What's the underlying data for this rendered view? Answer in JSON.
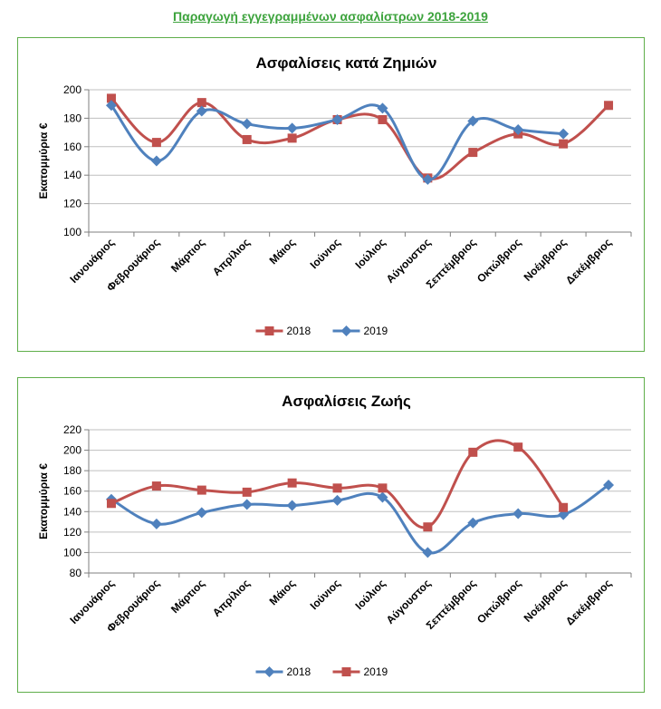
{
  "page_title": "Παραγωγή εγγεγραμμένων ασφαλίστρων 2018-2019",
  "colors": {
    "series_red": "#c0504d",
    "series_blue": "#4f81bd",
    "title_green": "#3ca33c",
    "border_green": "#5fae4a",
    "grid": "#bfbfbf"
  },
  "chart_data": [
    {
      "type": "line",
      "title": "Ασφαλίσεις κατά Ζημιών",
      "ylabel": "Εκατομμύρια  €",
      "xlabel": "",
      "ylim": [
        100,
        200
      ],
      "yticks": [
        100,
        120,
        140,
        160,
        180,
        200
      ],
      "grid": true,
      "legend_position": "bottom",
      "categories": [
        "Ιανουάριος",
        "Φεβρουάριος",
        "Μάρτιος",
        "Απρίλιος",
        "Μάιος",
        "Ιούνιος",
        "Ιούλιος",
        "Αύγουστος",
        "Σεπτέμβριος",
        "Οκτώβριος",
        "Νοέμβριος",
        "Δεκέμβριος"
      ],
      "series": [
        {
          "name": "2018",
          "color": "#c0504d",
          "marker": "square",
          "values": [
            194,
            163,
            191,
            165,
            166,
            179,
            179,
            138,
            156,
            169,
            162,
            189
          ]
        },
        {
          "name": "2019",
          "color": "#4f81bd",
          "marker": "diamond",
          "values": [
            189,
            150,
            185,
            176,
            173,
            179,
            187,
            137,
            178,
            172,
            169,
            null
          ]
        }
      ]
    },
    {
      "type": "line",
      "title": "Ασφαλίσεις Ζωής",
      "ylabel": "Εκατομμύρια  €",
      "xlabel": "",
      "ylim": [
        80,
        220
      ],
      "yticks": [
        80,
        100,
        120,
        140,
        160,
        180,
        200,
        220
      ],
      "grid": true,
      "legend_position": "bottom",
      "categories": [
        "Ιανουάριος",
        "Φεβρουάριος",
        "Μάρτιος",
        "Απρίλιος",
        "Μάιος",
        "Ιούνιος",
        "Ιούλιος",
        "Αύγουστος",
        "Σεπτέμβριος",
        "Οκτώβριος",
        "Νοέμβριος",
        "Δεκέμβριος"
      ],
      "series": [
        {
          "name": "2018",
          "color": "#4f81bd",
          "marker": "diamond",
          "values": [
            152,
            128,
            139,
            147,
            146,
            151,
            154,
            100,
            129,
            138,
            137,
            166
          ]
        },
        {
          "name": "2019",
          "color": "#c0504d",
          "marker": "square",
          "values": [
            148,
            165,
            161,
            159,
            168,
            163,
            163,
            125,
            198,
            203,
            144,
            null
          ]
        }
      ]
    }
  ]
}
